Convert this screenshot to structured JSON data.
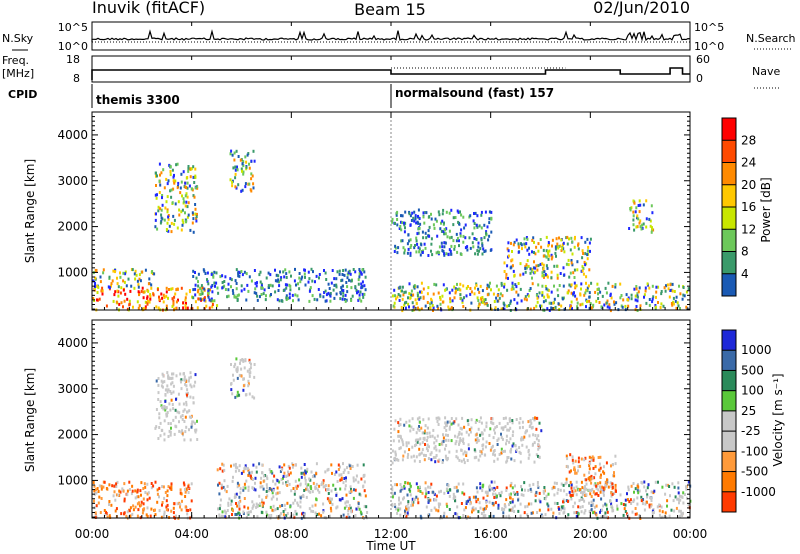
{
  "header": {
    "station": "Inuvik (fitACF)",
    "beam": "Beam 15",
    "date": "02/Jun/2010"
  },
  "noise_panel": {
    "left_label": "N.Sky",
    "right_label": "N.Search",
    "left_ticks": [
      "10^5",
      "10^0"
    ],
    "right_ticks": [
      "10^5",
      "10^0"
    ]
  },
  "freq_panel": {
    "left_label_line1": "Freq.",
    "left_label_line2": "[MHz]",
    "right_label": "Nave",
    "left_ticks": [
      "18",
      "8"
    ],
    "right_ticks": [
      "60",
      "0"
    ]
  },
  "cpid": {
    "label": "CPID",
    "segments": [
      {
        "name": "themis 3300",
        "start_hour": 0
      },
      {
        "name": "normalsound (fast) 157",
        "start_hour": 12
      }
    ]
  },
  "x_axis": {
    "title": "Time UT",
    "ticks": [
      "00:00",
      "04:00",
      "08:00",
      "12:00",
      "16:00",
      "20:00",
      "00:00"
    ],
    "tick_hours": [
      0,
      4,
      8,
      12,
      16,
      20,
      24
    ]
  },
  "power_panel": {
    "ylabel": "Slant Range [km]",
    "yticks": [
      1000,
      2000,
      3000,
      4000
    ],
    "colorbar_title": "Power [dB]",
    "colorbar_ticks": [
      "28",
      "24",
      "20",
      "16",
      "12",
      "8",
      "4"
    ],
    "colorbar_colors": [
      "#ff0000",
      "#ff4a00",
      "#ff8a00",
      "#ffc800",
      "#c8e600",
      "#6cc85a",
      "#3a9a6a",
      "#1a5ab4",
      "#1e28ff"
    ]
  },
  "velocity_panel": {
    "ylabel": "Slant Range [km]",
    "yticks": [
      1000,
      2000,
      3000,
      4000
    ],
    "colorbar_title": "Velocity [m s⁻¹]",
    "colorbar_ticks": [
      "1000",
      "500",
      "100",
      "25",
      "-25",
      "-100",
      "-500",
      "-1000"
    ],
    "colorbar_colors": [
      "#1e28d8",
      "#3a6aa8",
      "#2a8a5a",
      "#5ac83a",
      "#c8c8c8",
      "#c8c8c8",
      "#ff9a3a",
      "#ff7a00",
      "#ff3a00"
    ]
  },
  "chart_data": [
    {
      "type": "heatmap",
      "title": "Power [dB]",
      "xlabel": "Time UT",
      "ylabel": "Slant Range [km]",
      "xlim": [
        0,
        24
      ],
      "ylim": [
        180,
        4500
      ],
      "colorbar": {
        "label": "Power [dB]",
        "ticks": [
          4,
          8,
          12,
          16,
          20,
          24,
          28
        ]
      },
      "features": [
        {
          "t0": 0.0,
          "t1": 5.0,
          "r0": 200,
          "r1": 700,
          "level": "high"
        },
        {
          "t0": 0.0,
          "t1": 2.5,
          "r0": 700,
          "r1": 1100,
          "level": "mid"
        },
        {
          "t0": 2.5,
          "t1": 4.2,
          "r0": 1900,
          "r1": 3400,
          "level": "mid"
        },
        {
          "t0": 5.5,
          "t1": 6.5,
          "r0": 2800,
          "r1": 3700,
          "level": "mid"
        },
        {
          "t0": 4.0,
          "t1": 11.0,
          "r0": 400,
          "r1": 1100,
          "level": "low"
        },
        {
          "t0": 12.0,
          "t1": 16.0,
          "r0": 1400,
          "r1": 2400,
          "level": "low"
        },
        {
          "t0": 12.0,
          "t1": 24.0,
          "r0": 200,
          "r1": 800,
          "level": "mid"
        },
        {
          "t0": 16.5,
          "t1": 20.0,
          "r0": 900,
          "r1": 1800,
          "level": "mid"
        },
        {
          "t0": 21.5,
          "t1": 22.5,
          "r0": 1900,
          "r1": 2600,
          "level": "mid"
        }
      ]
    },
    {
      "type": "heatmap",
      "title": "Velocity [m s⁻¹]",
      "xlabel": "Time UT",
      "ylabel": "Slant Range [km]",
      "xlim": [
        0,
        24
      ],
      "ylim": [
        180,
        4500
      ],
      "colorbar": {
        "label": "Velocity [m s⁻¹]",
        "ticks": [
          1000,
          500,
          100,
          25,
          -25,
          -100,
          -500,
          -1000
        ]
      },
      "features": [
        {
          "t0": 0.0,
          "t1": 4.0,
          "r0": 200,
          "r1": 1000,
          "level": "negative"
        },
        {
          "t0": 2.5,
          "t1": 4.2,
          "r0": 1900,
          "r1": 3400,
          "level": "near-zero"
        },
        {
          "t0": 5.5,
          "t1": 6.5,
          "r0": 2800,
          "r1": 3700,
          "level": "near-zero"
        },
        {
          "t0": 5.0,
          "t1": 11.0,
          "r0": 200,
          "r1": 1400,
          "level": "mixed"
        },
        {
          "t0": 12.0,
          "t1": 18.0,
          "r0": 1400,
          "r1": 2400,
          "level": "near-zero"
        },
        {
          "t0": 12.0,
          "t1": 24.0,
          "r0": 200,
          "r1": 1000,
          "level": "mixed"
        },
        {
          "t0": 19.0,
          "t1": 21.0,
          "r0": 700,
          "r1": 1600,
          "level": "negative"
        }
      ]
    }
  ]
}
